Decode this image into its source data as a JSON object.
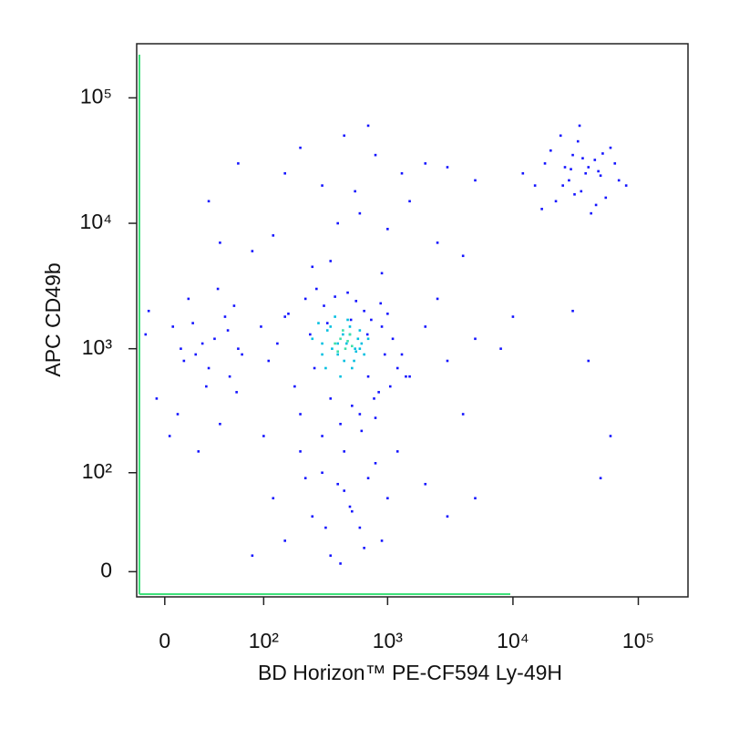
{
  "chart_data": {
    "type": "scatter",
    "x_label": "BD Horizon™ PE-CF594 Ly-49H",
    "y_label": "APC CD49b",
    "xscale": "biexponential",
    "yscale": "biexponential",
    "xlim": [
      -18,
      249000
    ],
    "ylim": [
      -16,
      270000
    ],
    "xticks": [
      0,
      {
        "value": 100,
        "label": "10²"
      },
      {
        "value": 1000,
        "label": "10³"
      },
      {
        "value": 10000,
        "label": "10⁴"
      },
      {
        "value": 100000,
        "label": "10⁵"
      }
    ],
    "yticks": [
      0,
      {
        "value": 100,
        "label": "10²"
      },
      {
        "value": 1000,
        "label": "10³"
      },
      {
        "value": 10000,
        "label": "10⁴"
      },
      {
        "value": 100000,
        "label": "10⁵"
      }
    ],
    "series": [
      {
        "color": "#1414ff",
        "x": [
          150,
          220,
          310,
          480,
          650,
          900,
          1100,
          1300,
          180,
          260,
          350,
          520,
          700,
          850,
          1200,
          130,
          240,
          420,
          600,
          800,
          95,
          110,
          160,
          380,
          560,
          740,
          1000,
          1400,
          200,
          300,
          450,
          620,
          780,
          950,
          270,
          330,
          510,
          690,
          880,
          1050,
          -10,
          5,
          20,
          35,
          50,
          -5,
          15,
          30,
          45,
          60,
          8,
          25,
          40,
          55,
          -12,
          12,
          28,
          48,
          65,
          3,
          18,
          38,
          58,
          22,
          10,
          30,
          60,
          120,
          200,
          300,
          450,
          600,
          800,
          1000,
          1300,
          2000,
          3000,
          5000,
          80,
          250,
          400,
          700,
          1500,
          2500,
          150,
          350,
          550,
          900,
          40,
          4000,
          12000,
          18000,
          25000,
          30000,
          35000,
          40000,
          50000,
          60000,
          22000,
          28000,
          33000,
          45000,
          55000,
          15000,
          20000,
          26000,
          38000,
          42000,
          65000,
          70000,
          24000,
          31000,
          36000,
          48000,
          17000,
          29000,
          52000,
          80000,
          34000,
          46000,
          100,
          200,
          300,
          400,
          500,
          600,
          800,
          1000,
          150,
          250,
          350,
          450,
          700,
          900,
          120,
          220,
          320,
          420,
          520,
          650,
          1200,
          2000,
          3000,
          5000,
          80,
          2000,
          3000,
          5000,
          8000,
          1500,
          2500,
          4000,
          10000,
          40000,
          50000,
          30000,
          60000
        ],
        "y": [
          1800,
          2500,
          2200,
          2800,
          2000,
          1500,
          1200,
          900,
          500,
          700,
          400,
          350,
          600,
          450,
          700,
          1100,
          1300,
          250,
          300,
          280,
          1500,
          800,
          1900,
          2600,
          2400,
          1700,
          1900,
          600,
          300,
          200,
          150,
          220,
          400,
          900,
          3000,
          1600,
          1700,
          1300,
          2300,
          500,
          2000,
          1500,
          900,
          1200,
          600,
          400,
          2500,
          700,
          1800,
          1000,
          300,
          1100,
          250,
          2200,
          1300,
          800,
          500,
          1400,
          900,
          200,
          1600,
          3000,
          450,
          150,
          1000,
          15000,
          30000,
          8000,
          40000,
          20000,
          50000,
          12000,
          35000,
          9000,
          25000,
          30000,
          28000,
          22000,
          6000,
          4500,
          10000,
          60000,
          15000,
          7000,
          25000,
          5000,
          18000,
          4000,
          7000,
          5500,
          25000,
          30000,
          20000,
          35000,
          18000,
          28000,
          24000,
          40000,
          15000,
          22000,
          45000,
          32000,
          16000,
          20000,
          38000,
          28000,
          25000,
          12000,
          30000,
          22000,
          50000,
          17000,
          33000,
          26000,
          13000,
          27000,
          36000,
          20000,
          60000,
          14000,
          200,
          150,
          100,
          80,
          50,
          30,
          120,
          60,
          20,
          40,
          10,
          70,
          90,
          20,
          60,
          90,
          30,
          5,
          45,
          15,
          150,
          80,
          40,
          60,
          10,
          1500,
          800,
          1200,
          1000,
          600,
          2500,
          300,
          1800,
          800,
          90,
          2000,
          200
        ]
      },
      {
        "color": "#00bfe0",
        "x": [
          250,
          300,
          350,
          400,
          450,
          500,
          550,
          600,
          650,
          280,
          320,
          380,
          420,
          480,
          520,
          580,
          620,
          360,
          440,
          540,
          300,
          400,
          500,
          600,
          700,
          330,
          470,
          560
        ],
        "y": [
          1200,
          900,
          1500,
          1100,
          800,
          1300,
          1000,
          1400,
          900,
          1600,
          700,
          1800,
          600,
          1700,
          700,
          1200,
          1100,
          1000,
          1300,
          800,
          1100,
          900,
          1500,
          1000,
          1200,
          1400,
          1100,
          950
        ]
      },
      {
        "color": "#3fe0a8",
        "x": [
          380,
          420,
          460,
          500,
          440,
          400,
          480,
          520
        ],
        "y": [
          1100,
          1200,
          1000,
          1300,
          1400,
          950,
          1150,
          1050
        ]
      }
    ]
  }
}
